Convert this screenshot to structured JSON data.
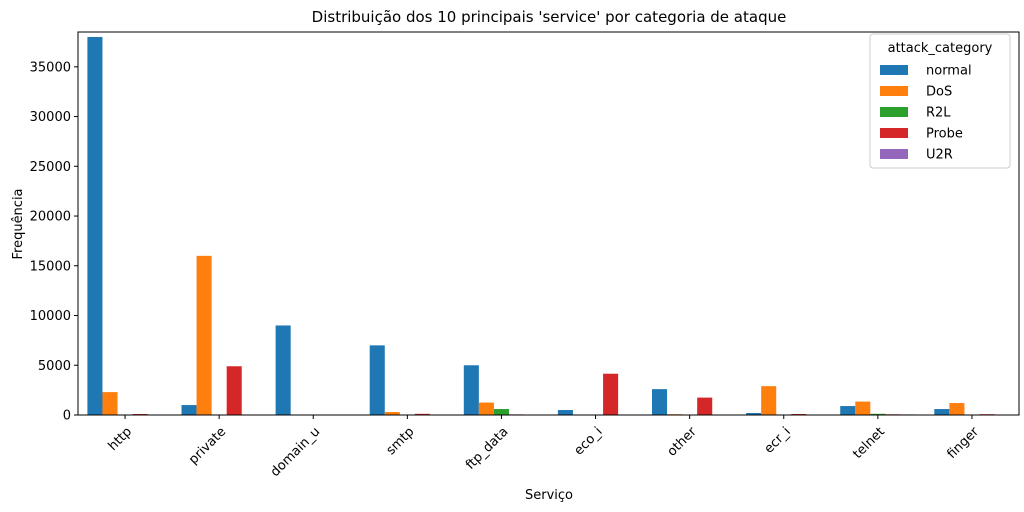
{
  "chart_data": {
    "type": "bar",
    "title": "Distribuição dos 10 principais 'service' por categoria de ataque",
    "xlabel": "Serviço",
    "ylabel": "Frequência",
    "categories": [
      "http",
      "private",
      "domain_u",
      "smtp",
      "ftp_data",
      "eco_i",
      "other",
      "ecr_i",
      "telnet",
      "finger"
    ],
    "yticks": [
      "0",
      "5000",
      "10000",
      "15000",
      "20000",
      "25000",
      "30000",
      "35000"
    ],
    "ylim": [
      0,
      38500
    ],
    "legend": {
      "title": "attack_category",
      "placement": "top-right"
    },
    "series": [
      {
        "name": "normal",
        "color": "#1f77b4",
        "values": [
          38000,
          1000,
          9000,
          7000,
          5000,
          500,
          2600,
          200,
          900,
          600
        ]
      },
      {
        "name": "DoS",
        "color": "#ff7f0e",
        "values": [
          2300,
          16000,
          0,
          300,
          1250,
          0,
          80,
          2900,
          1350,
          1200
        ]
      },
      {
        "name": "R2L",
        "color": "#2ca02c",
        "values": [
          10,
          0,
          0,
          30,
          600,
          0,
          20,
          0,
          120,
          0
        ]
      },
      {
        "name": "Probe",
        "color": "#d62728",
        "values": [
          100,
          4900,
          0,
          120,
          60,
          4150,
          1750,
          100,
          70,
          80
        ]
      },
      {
        "name": "U2R",
        "color": "#9467bd",
        "values": [
          0,
          0,
          0,
          0,
          0,
          0,
          0,
          0,
          60,
          0
        ]
      }
    ]
  }
}
